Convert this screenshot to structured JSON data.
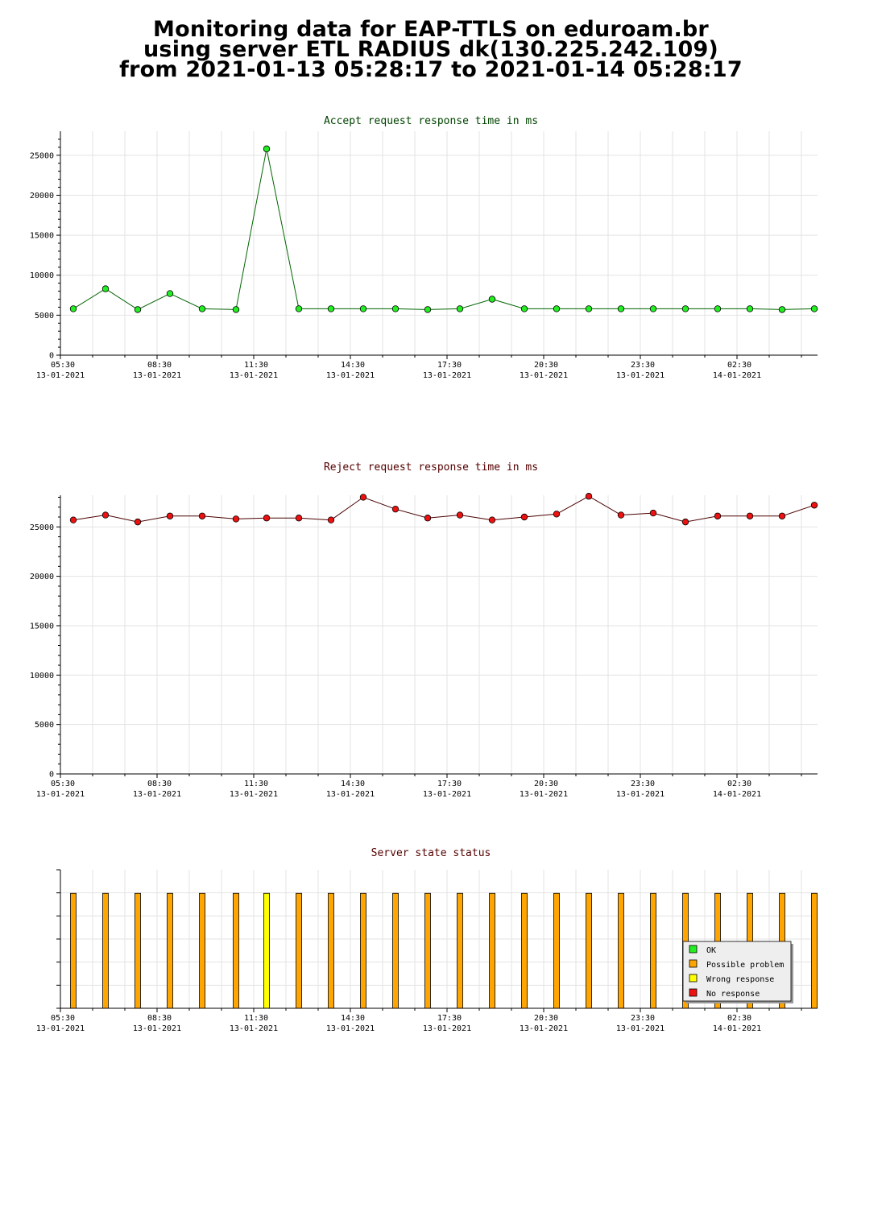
{
  "page": {
    "title_lines": [
      "Monitoring data for EAP-TTLS on eduroam.br",
      "using server ETL RADIUS dk(130.225.242.109)",
      "from 2021-01-13 05:28:17 to 2021-01-14 05:28:17"
    ]
  },
  "colors": {
    "accept_line": "#006400",
    "accept_marker": "#22ee22",
    "reject_line": "#4a0000",
    "reject_marker": "#ee1111",
    "accept_title": "#004400",
    "reject_title": "#550000",
    "status_title": "#550000",
    "ok": "#22ee22",
    "possible_problem": "#ffa500",
    "wrong_response": "#ffff00",
    "no_response": "#ee1111"
  },
  "chart_data": [
    {
      "type": "line",
      "title": "Accept request response time in ms",
      "x_tick_labels": [
        [
          "05:30",
          "13-01-2021"
        ],
        [
          "08:30",
          "13-01-2021"
        ],
        [
          "11:30",
          "13-01-2021"
        ],
        [
          "14:30",
          "13-01-2021"
        ],
        [
          "17:30",
          "13-01-2021"
        ],
        [
          "20:30",
          "13-01-2021"
        ],
        [
          "23:30",
          "13-01-2021"
        ],
        [
          "02:30",
          "14-01-2021"
        ]
      ],
      "x_range_hours": [
        0,
        23.5
      ],
      "ylim": [
        0,
        28000
      ],
      "y_ticks": [
        0,
        5000,
        10000,
        15000,
        20000,
        25000
      ],
      "grid": true,
      "x": [
        0.4,
        1.4,
        2.4,
        3.4,
        4.4,
        5.45,
        6.4,
        7.4,
        8.4,
        9.4,
        10.4,
        11.4,
        12.4,
        13.4,
        14.4,
        15.4,
        16.4,
        17.4,
        18.4,
        19.4,
        20.4,
        21.4,
        22.4,
        23.4
      ],
      "values": [
        5800,
        8300,
        5700,
        7700,
        5800,
        5700,
        25800,
        5800,
        5800,
        5800,
        5800,
        5700,
        5800,
        7000,
        5800,
        5800,
        5800,
        5800,
        5800,
        5800,
        5800,
        5800,
        5700,
        5800
      ]
    },
    {
      "type": "line",
      "title": "Reject request response time in ms",
      "x_tick_labels": [
        [
          "05:30",
          "13-01-2021"
        ],
        [
          "08:30",
          "13-01-2021"
        ],
        [
          "11:30",
          "13-01-2021"
        ],
        [
          "14:30",
          "13-01-2021"
        ],
        [
          "17:30",
          "13-01-2021"
        ],
        [
          "20:30",
          "13-01-2021"
        ],
        [
          "23:30",
          "13-01-2021"
        ],
        [
          "02:30",
          "14-01-2021"
        ]
      ],
      "x_range_hours": [
        0,
        23.5
      ],
      "ylim": [
        0,
        28200
      ],
      "y_ticks": [
        0,
        5000,
        10000,
        15000,
        20000,
        25000
      ],
      "grid": true,
      "x": [
        0.4,
        1.4,
        2.4,
        3.4,
        4.4,
        5.45,
        6.4,
        7.4,
        8.4,
        9.4,
        10.4,
        11.4,
        12.4,
        13.4,
        14.4,
        15.4,
        16.4,
        17.4,
        18.4,
        19.4,
        20.4,
        21.4,
        22.4,
        23.4
      ],
      "values": [
        25700,
        26200,
        25500,
        26100,
        26100,
        25800,
        25900,
        25900,
        25700,
        28000,
        26800,
        25900,
        26200,
        25700,
        26000,
        26300,
        28100,
        26200,
        26400,
        25500,
        26100,
        26100,
        26100,
        27200
      ]
    },
    {
      "type": "bar",
      "title": "Server state status",
      "x_tick_labels": [
        [
          "05:30",
          "13-01-2021"
        ],
        [
          "08:30",
          "13-01-2021"
        ],
        [
          "11:30",
          "13-01-2021"
        ],
        [
          "14:30",
          "13-01-2021"
        ],
        [
          "17:30",
          "13-01-2021"
        ],
        [
          "20:30",
          "13-01-2021"
        ],
        [
          "23:30",
          "13-01-2021"
        ],
        [
          "02:30",
          "14-01-2021"
        ]
      ],
      "x_range_hours": [
        0,
        23.5
      ],
      "x": [
        0.4,
        1.4,
        2.4,
        3.4,
        4.4,
        5.45,
        6.4,
        7.4,
        8.4,
        9.4,
        10.4,
        11.4,
        12.4,
        13.4,
        14.4,
        15.4,
        16.4,
        17.4,
        18.4,
        19.4,
        20.4,
        21.4,
        22.4,
        23.4
      ],
      "states": [
        "possible_problem",
        "possible_problem",
        "possible_problem",
        "possible_problem",
        "possible_problem",
        "possible_problem",
        "wrong_response",
        "possible_problem",
        "possible_problem",
        "possible_problem",
        "possible_problem",
        "possible_problem",
        "possible_problem",
        "possible_problem",
        "possible_problem",
        "possible_problem",
        "possible_problem",
        "possible_problem",
        "possible_problem",
        "possible_problem",
        "possible_problem",
        "possible_problem",
        "possible_problem",
        "possible_problem"
      ],
      "bar_level": 0.83,
      "legend_position": "bottom-right",
      "legend": [
        {
          "key": "ok",
          "label": "OK"
        },
        {
          "key": "possible_problem",
          "label": "Possible problem"
        },
        {
          "key": "wrong_response",
          "label": "Wrong response"
        },
        {
          "key": "no_response",
          "label": "No response"
        }
      ]
    }
  ]
}
